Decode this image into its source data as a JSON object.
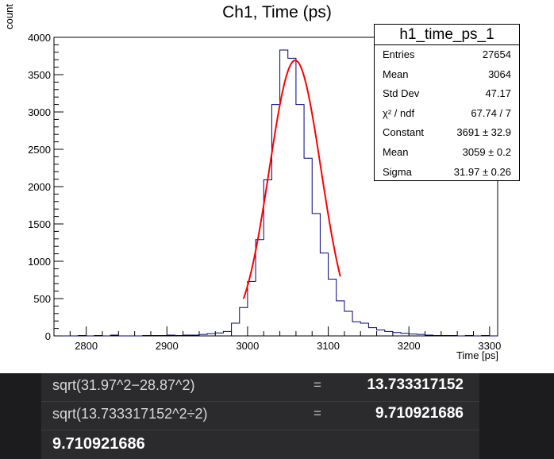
{
  "chart_data": {
    "type": "histogram",
    "title": "Ch1, Time (ps)",
    "xlabel": "Time [ps]",
    "ylabel": "count",
    "xlim": [
      2760,
      3310
    ],
    "ylim": [
      0,
      4000
    ],
    "x_ticks": [
      2800,
      2900,
      3000,
      3100,
      3200,
      3300
    ],
    "y_ticks": [
      0,
      500,
      1000,
      1500,
      2000,
      2500,
      3000,
      3500,
      4000
    ],
    "bin_width": 10,
    "bins_x": [
      2770,
      2780,
      2790,
      2800,
      2810,
      2820,
      2830,
      2840,
      2850,
      2860,
      2870,
      2880,
      2890,
      2900,
      2910,
      2920,
      2930,
      2940,
      2950,
      2960,
      2970,
      2980,
      2990,
      3000,
      3010,
      3020,
      3030,
      3040,
      3050,
      3060,
      3070,
      3080,
      3090,
      3100,
      3110,
      3120,
      3130,
      3140,
      3150,
      3160,
      3170,
      3180,
      3190,
      3200,
      3210,
      3220,
      3230,
      3240,
      3250,
      3260,
      3270,
      3280,
      3290,
      3300
    ],
    "values": [
      0,
      0,
      5,
      0,
      5,
      0,
      10,
      0,
      0,
      0,
      5,
      5,
      5,
      10,
      5,
      10,
      10,
      20,
      30,
      40,
      60,
      170,
      380,
      730,
      1290,
      2090,
      3100,
      3830,
      3720,
      3100,
      2380,
      1640,
      1110,
      760,
      470,
      330,
      190,
      170,
      110,
      80,
      60,
      45,
      35,
      25,
      20,
      10,
      5,
      5,
      5,
      0,
      5,
      0,
      5,
      0
    ],
    "fit": {
      "function": "gaus",
      "color": "#ff0000",
      "constant": 3691,
      "mean": 3059,
      "sigma": 31.97,
      "x_range": [
        2995,
        3115
      ]
    },
    "series_color": "#000080",
    "stats": {
      "title": "h1_time_ps_1",
      "rows": [
        {
          "label": "Entries",
          "value": "27654"
        },
        {
          "label": "Mean",
          "value": "3064"
        },
        {
          "label": "Std Dev",
          "value": "47.17"
        },
        {
          "label": "χ² / ndf",
          "value": "67.74 / 7"
        },
        {
          "label": "Constant",
          "value": "3691  ± 32.9"
        },
        {
          "label": "Mean",
          "value": "3059  ± 0.2"
        },
        {
          "label": "Sigma",
          "value": "31.97  ± 0.26"
        }
      ]
    }
  },
  "calculator": {
    "rows": [
      {
        "expr": "sqrt(31.97^2−28.87^2)",
        "eq": "=",
        "result": "13.733317152"
      },
      {
        "expr": "sqrt(13.733317152^2÷2)",
        "eq": "=",
        "result": "9.710921686"
      }
    ],
    "current_result": "9.710921686",
    "colors": {
      "background": "#1c1c1e",
      "panel": "#2b2b2d",
      "text": "#ffffff"
    }
  }
}
